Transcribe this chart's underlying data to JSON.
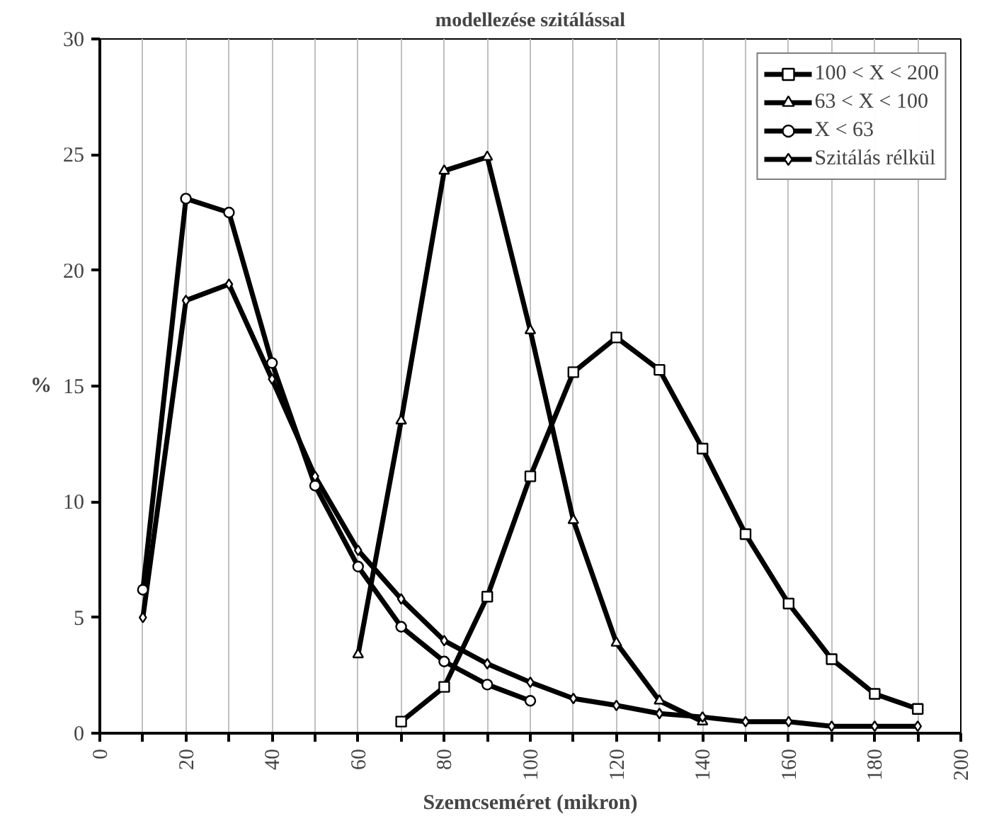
{
  "chart_data": {
    "type": "line",
    "title": "modellezése szitálással",
    "xlabel": "Szemcseméret (mikron)",
    "ylabel": "%",
    "xlim": [
      0,
      200
    ],
    "ylim": [
      0,
      30
    ],
    "xticks": [
      0,
      {
        "value": 10,
        "label": null
      },
      20,
      {
        "value": 30,
        "label": null
      },
      40,
      {
        "value": 50,
        "label": null
      },
      60,
      {
        "value": 70,
        "label": null
      },
      80,
      {
        "value": 90,
        "label": null
      },
      100,
      {
        "value": 110,
        "label": null
      },
      120,
      {
        "value": 130,
        "label": null
      },
      140,
      {
        "value": 150,
        "label": null
      },
      160,
      {
        "value": 170,
        "label": null
      },
      180,
      {
        "value": 190,
        "label": null
      },
      200
    ],
    "yticks": [
      0,
      5,
      10,
      15,
      20,
      25,
      30
    ],
    "grid": "x",
    "legend": "top right",
    "series": [
      {
        "name": "100 < X < 200",
        "color": "#000000",
        "marker": "square",
        "x": [
          70,
          80,
          90,
          100,
          110,
          120,
          130,
          140,
          150,
          160,
          170,
          180,
          190
        ],
        "values": [
          0.5,
          2.0,
          5.9,
          11.1,
          15.6,
          17.1,
          15.7,
          12.3,
          8.6,
          5.6,
          3.2,
          1.7,
          1.05
        ]
      },
      {
        "name": "63 < X < 100",
        "color": "#000000",
        "marker": "triangle",
        "x": [
          60,
          70,
          80,
          90,
          100,
          110,
          120,
          130,
          140
        ],
        "values": [
          3.4,
          13.5,
          24.3,
          24.9,
          17.4,
          9.2,
          3.9,
          1.4,
          0.5
        ]
      },
      {
        "name": "X < 63",
        "color": "#000000",
        "marker": "circle",
        "x": [
          10,
          20,
          30,
          40,
          50,
          60,
          70,
          80,
          90,
          100
        ],
        "values": [
          6.2,
          23.1,
          22.5,
          16.0,
          10.7,
          7.2,
          4.6,
          3.1,
          2.1,
          1.4
        ]
      },
      {
        "name": "Szitálás rélkül",
        "color": "#000000",
        "marker": "diamond",
        "x": [
          10,
          20,
          30,
          40,
          50,
          60,
          70,
          80,
          90,
          100,
          110,
          120,
          130,
          140,
          150,
          160,
          170,
          180,
          190
        ],
        "values": [
          5.0,
          18.7,
          19.4,
          15.3,
          11.1,
          7.9,
          5.8,
          4.0,
          3.0,
          2.2,
          1.5,
          1.2,
          0.85,
          0.7,
          0.5,
          0.5,
          0.3,
          0.3,
          0.3
        ]
      }
    ]
  }
}
